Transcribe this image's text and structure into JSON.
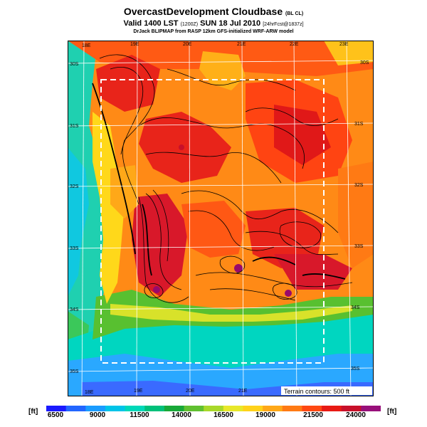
{
  "header": {
    "title": "OvercastDevelopment Cloudbase",
    "title_tag": "(BL CL)",
    "valid": "Valid 1400 LST",
    "valid_code": "(1200Z)",
    "date": "SUN 18 Jul 2010",
    "fcst": "[24hrFcst@1837z]",
    "credit": "DrJack BLIPMAP from RASP 12km GFS-initialized WRF-ARW model"
  },
  "map": {
    "lon_labels_top": [
      "18E",
      "19E",
      "20E",
      "21E",
      "22E",
      "23E"
    ],
    "lon_labels_bottom": [
      "18E",
      "19E",
      "20E",
      "21E"
    ],
    "lat_labels_left": [
      "30S",
      "31S",
      "32S",
      "33S",
      "34S",
      "35S"
    ],
    "lat_labels_right": [
      "30S",
      "31S",
      "32S",
      "33S",
      "34S",
      "35S"
    ],
    "terrain_note": "Terrain contours: 500 ft"
  },
  "legend": {
    "unit_left": "[ft]",
    "unit_right": "[ft]",
    "ticks": [
      "6500",
      "9000",
      "11500",
      "14000",
      "16500",
      "19000",
      "21500",
      "24000"
    ],
    "colors": [
      "#1a1aff",
      "#2266ff",
      "#1a9cff",
      "#00c4e8",
      "#00d8b8",
      "#00c07a",
      "#18a838",
      "#60c030",
      "#a8d82a",
      "#e8e82a",
      "#ffd21a",
      "#ffa818",
      "#ff7a14",
      "#ff4812",
      "#e81a14",
      "#c8102a",
      "#98107a"
    ]
  }
}
